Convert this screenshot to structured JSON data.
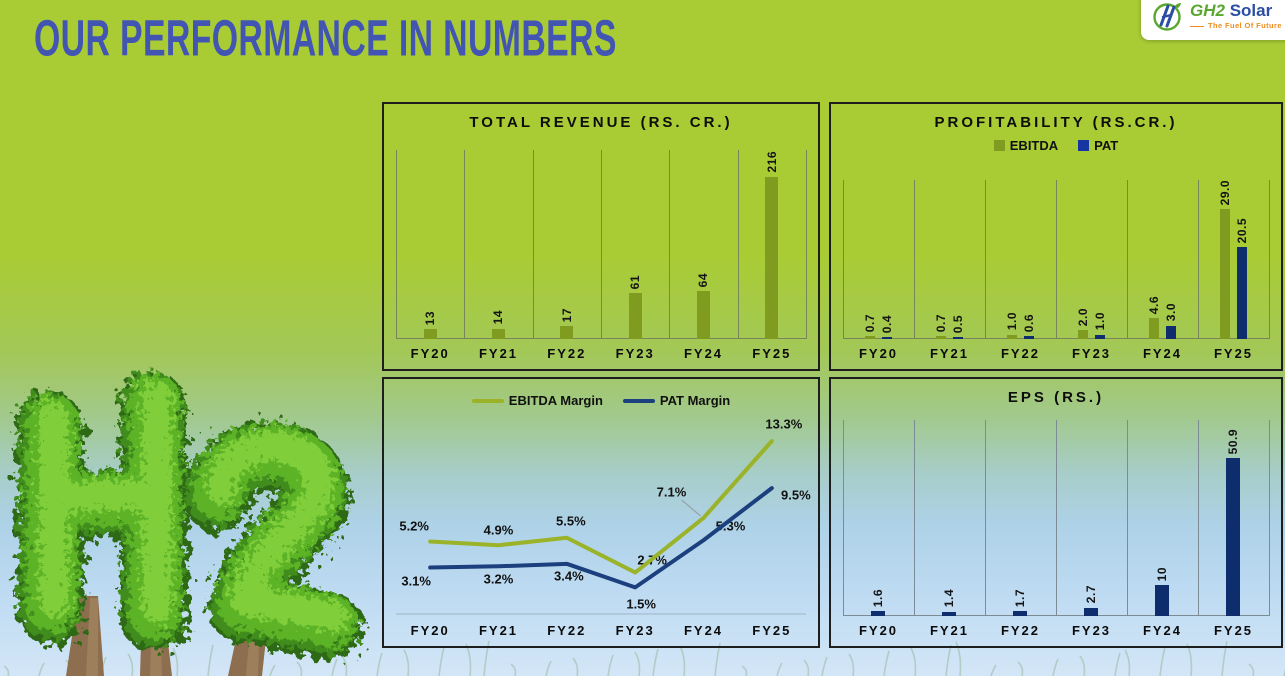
{
  "page": {
    "title": "OUR PERFORMANCE IN NUMBERS"
  },
  "logo": {
    "brand_primary": "GH2",
    "brand_secondary": "Solar",
    "tagline": "The Fuel Of Future"
  },
  "colors": {
    "background_green": "#a9cc35",
    "title_blue": "#4355b2",
    "bar_olive": "#7f9c20",
    "bar_navy": "#0e2d6d",
    "line_olive": "#9ab329",
    "line_navy": "#1c3f7d",
    "legend_pat_blue": "#1535a3",
    "logo_green": "#5aa72d",
    "logo_blue": "#2b4ea3",
    "logo_orange": "#f08c1e"
  },
  "chart_data": [
    {
      "id": "revenue",
      "type": "bar",
      "title": "TOTAL REVENUE (RS. CR.)",
      "categories": [
        "FY20",
        "FY21",
        "FY22",
        "FY23",
        "FY24",
        "FY25"
      ],
      "values": [
        13,
        14,
        17,
        61,
        64,
        216
      ],
      "value_labels": [
        "13",
        "14",
        "17",
        "61",
        "64",
        "216"
      ],
      "ylim": [
        0,
        216
      ],
      "grid": "vertical",
      "color": "#7f9c20"
    },
    {
      "id": "profitability",
      "type": "bar",
      "title": "PROFITABILITY (RS.CR.)",
      "categories": [
        "FY20",
        "FY21",
        "FY22",
        "FY23",
        "FY24",
        "FY25"
      ],
      "ylim": [
        0,
        29
      ],
      "grid": "vertical",
      "legend_position": "top",
      "series": [
        {
          "name": "EBITDA",
          "color": "#7f9c20",
          "values": [
            0.7,
            0.7,
            1.0,
            2.0,
            4.6,
            29.0
          ],
          "labels": [
            "0.7",
            "0.7",
            "1.0",
            "2.0",
            "4.6",
            "29.0"
          ]
        },
        {
          "name": "PAT",
          "color": "#0e2d6d",
          "values": [
            0.4,
            0.5,
            0.6,
            1.0,
            3.0,
            20.5
          ],
          "labels": [
            "0.4",
            "0.5",
            "0.6",
            "1.0",
            "3.0",
            "20.5"
          ]
        }
      ]
    },
    {
      "id": "margins",
      "type": "line",
      "title": "",
      "categories": [
        "FY20",
        "FY21",
        "FY22",
        "FY23",
        "FY24",
        "FY25"
      ],
      "ylim": [
        0,
        14
      ],
      "grid": false,
      "legend_position": "top",
      "series": [
        {
          "name": "EBITDA Margin",
          "color": "#9ab329",
          "values": [
            5.2,
            4.9,
            5.5,
            2.7,
            7.1,
            13.3
          ],
          "labels": [
            "5.2%",
            "4.9%",
            "5.5%",
            "2.7%",
            "7.1%",
            "13.3%"
          ]
        },
        {
          "name": "PAT Margin",
          "color": "#1c3f7d",
          "values": [
            3.1,
            3.2,
            3.4,
            1.5,
            5.3,
            9.5
          ],
          "labels": [
            "3.1%",
            "3.2%",
            "3.4%",
            "1.5%",
            "5.3%",
            "9.5%"
          ]
        }
      ]
    },
    {
      "id": "eps",
      "type": "bar",
      "title": "EPS (RS.)",
      "categories": [
        "FY20",
        "FY21",
        "FY22",
        "FY23",
        "FY24",
        "FY25"
      ],
      "values": [
        1.6,
        1.4,
        1.7,
        2.7,
        10,
        50.9
      ],
      "value_labels": [
        "1.6",
        "1.4",
        "1.7",
        "2.7",
        "10",
        "50.9"
      ],
      "ylim": [
        0,
        50.9
      ],
      "grid": "vertical",
      "color": "#0e2d6d"
    }
  ]
}
